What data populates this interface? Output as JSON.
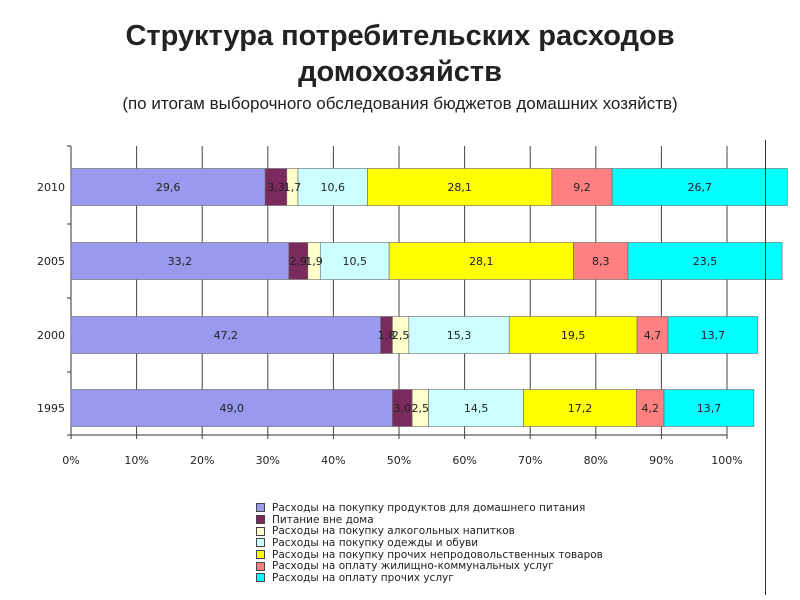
{
  "title_line1": "Структура потребительских расходов",
  "title_line2": "домохозяйств",
  "subtitle": "(по итогам выборочного обследования бюджетов домашних хозяйств)",
  "chart_data": {
    "type": "bar",
    "orientation": "horizontal",
    "stacked": "percent",
    "categories": [
      "2010",
      "2005",
      "2000",
      "1995"
    ],
    "series": [
      {
        "name": "Расходы на покупку продуктов для домашнего питания",
        "color": "#9999ee",
        "values": [
          29.6,
          33.2,
          47.2,
          49.0
        ],
        "labels": [
          "29,6",
          "33,2",
          "47,2",
          "49,0"
        ]
      },
      {
        "name": "Питание вне дома",
        "color": "#7b2a5e",
        "values": [
          3.3,
          2.9,
          1.8,
          3.0
        ],
        "labels": [
          "3,3",
          "2,9",
          "1,8",
          "3,0"
        ]
      },
      {
        "name": "Расходы на покупку алкогольных напитков",
        "color": "#ffffcc",
        "values": [
          1.7,
          1.9,
          2.5,
          2.5
        ],
        "labels": [
          "1,7",
          "1,9",
          "2,5",
          "2,5"
        ]
      },
      {
        "name": "Расходы на покупку одежды и обуви",
        "color": "#ccffff",
        "values": [
          10.6,
          10.5,
          15.3,
          14.5
        ],
        "labels": [
          "10,6",
          "10,5",
          "15,3",
          "14,5"
        ]
      },
      {
        "name": "Расходы на покупку прочих непродовольственных товаров",
        "color": "#ffff00",
        "values": [
          28.1,
          28.1,
          19.5,
          17.2
        ],
        "labels": [
          "28,1",
          "28,1",
          "19,5",
          "17,2"
        ]
      },
      {
        "name": "Расходы на оплату жилищно-коммунальных услуг",
        "color": "#ff8080",
        "values": [
          9.2,
          8.3,
          4.7,
          4.2
        ],
        "labels": [
          "9,2",
          "8,3",
          "4,7",
          "4,2"
        ]
      },
      {
        "name": "Расходы на оплату прочих услуг",
        "color": "#00ffff",
        "values": [
          26.7,
          23.5,
          13.7,
          13.7
        ],
        "labels": [
          "26,7",
          "23,5",
          "13,7",
          "13,7"
        ]
      }
    ],
    "x_ticks": [
      "0%",
      "10%",
      "20%",
      "30%",
      "40%",
      "50%",
      "60%",
      "70%",
      "80%",
      "90%",
      "100%"
    ],
    "xlim": [
      0,
      100
    ],
    "grid": true,
    "legend_position": "bottom"
  }
}
